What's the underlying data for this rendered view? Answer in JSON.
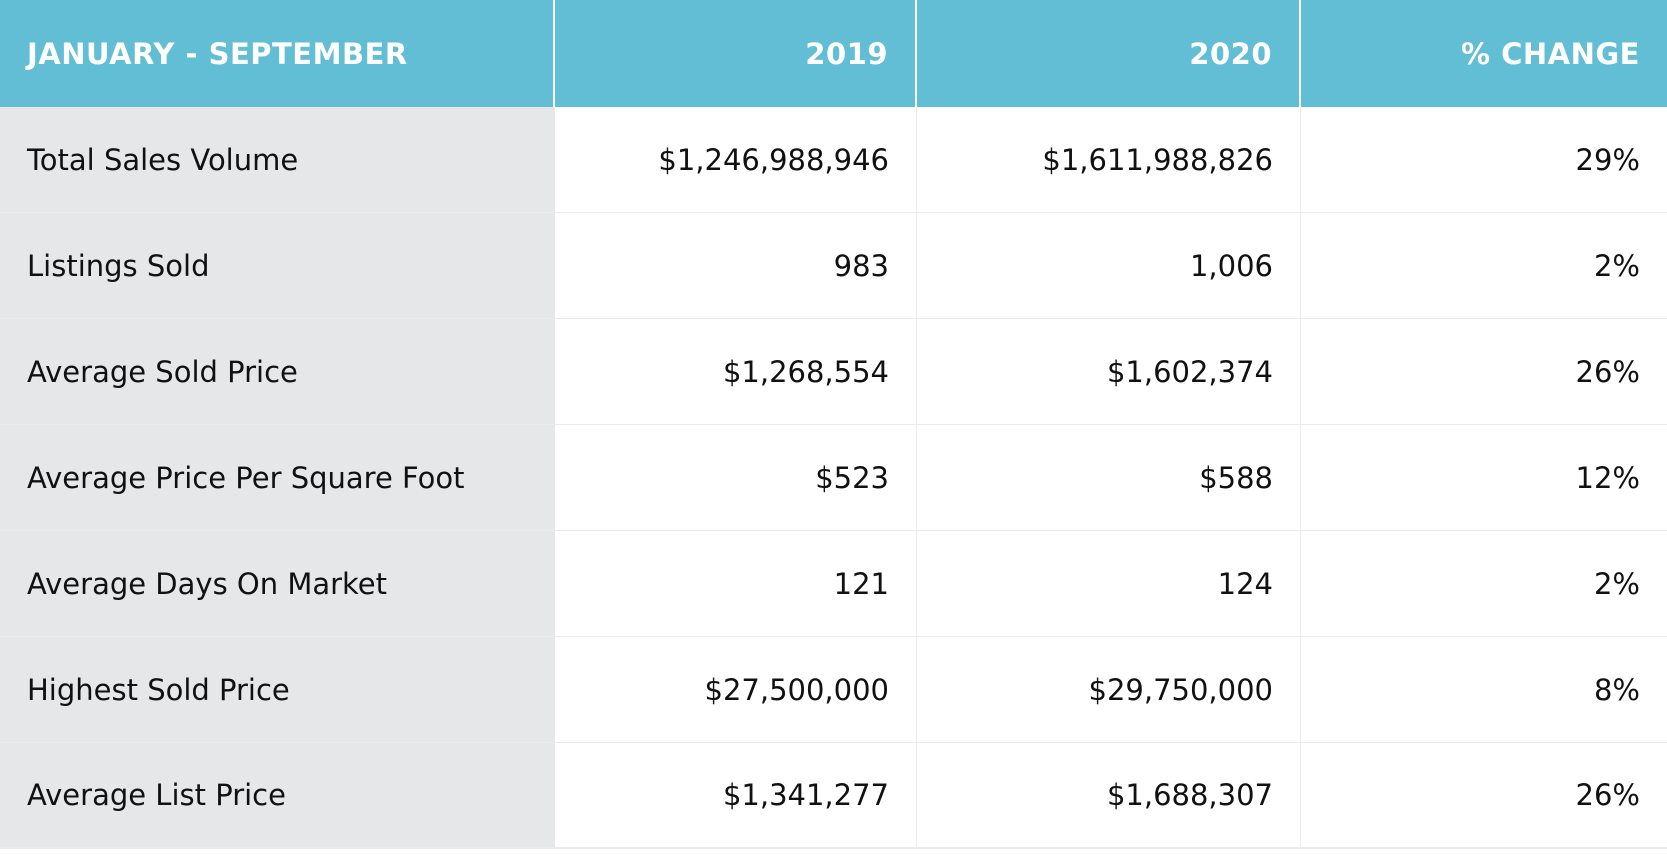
{
  "table": {
    "header": {
      "label": "JANUARY - SEPTEMBER",
      "col_2019": "2019",
      "col_2020": "2020",
      "col_change": "% CHANGE"
    },
    "rows": [
      {
        "label": "Total Sales Volume",
        "v2019": "$1,246,988,946",
        "v2020": "$1,611,988,826",
        "change": "29%"
      },
      {
        "label": "Listings Sold",
        "v2019": "983",
        "v2020": "1,006",
        "change": "2%"
      },
      {
        "label": "Average Sold Price",
        "v2019": "$1,268,554",
        "v2020": "$1,602,374",
        "change": "26%"
      },
      {
        "label": "Average Price Per Square Foot",
        "v2019": "$523",
        "v2020": "$588",
        "change": "12%"
      },
      {
        "label": "Average Days On Market",
        "v2019": "121",
        "v2020": "124",
        "change": "2%"
      },
      {
        "label": "Highest Sold Price",
        "v2019": "$27,500,000",
        "v2020": "$29,750,000",
        "change": "8%"
      },
      {
        "label": "Average List Price",
        "v2019": "$1,341,277",
        "v2020": "$1,688,307",
        "change": "26%"
      }
    ]
  },
  "colors": {
    "header_bg": "#62bed4",
    "label_col_bg": "#e6e7e9",
    "header_text": "#ffffff",
    "body_text": "#111111"
  }
}
